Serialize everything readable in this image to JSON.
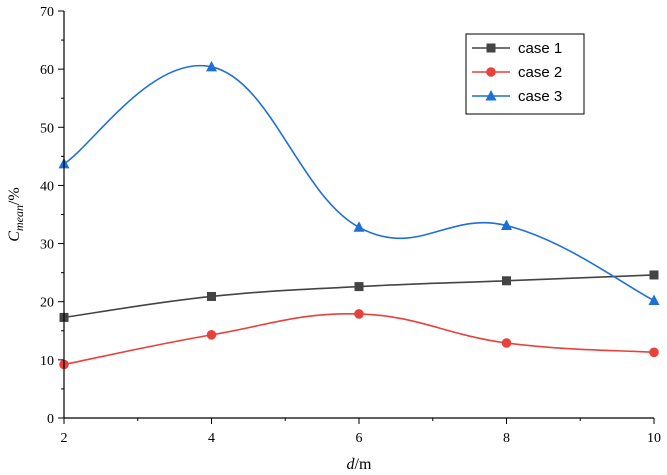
{
  "chart_data": {
    "type": "line",
    "x": [
      2,
      4,
      6,
      8,
      10
    ],
    "xlim": [
      2,
      10
    ],
    "ylim": [
      0,
      70
    ],
    "xticks": [
      2,
      4,
      6,
      8,
      10
    ],
    "yticks": [
      0,
      10,
      20,
      30,
      40,
      50,
      60,
      70
    ],
    "xlabel_italic": "d",
    "xlabel_unit": "/m",
    "ylabel_main": "C",
    "ylabel_sub": "mean",
    "ylabel_unit": "/%",
    "grid": false,
    "legend_position": "top-right",
    "series": [
      {
        "name": "case 1",
        "values": [
          17.3,
          20.9,
          22.6,
          23.6,
          24.6
        ],
        "color": "#444444",
        "marker": "square"
      },
      {
        "name": "case 2",
        "values": [
          9.2,
          14.3,
          17.9,
          12.9,
          11.3
        ],
        "color": "#e8413b",
        "marker": "circle"
      },
      {
        "name": "case 3",
        "values": [
          43.7,
          60.4,
          32.8,
          33.1,
          20.2
        ],
        "color": "#1f6fd6",
        "marker": "triangle"
      }
    ]
  }
}
